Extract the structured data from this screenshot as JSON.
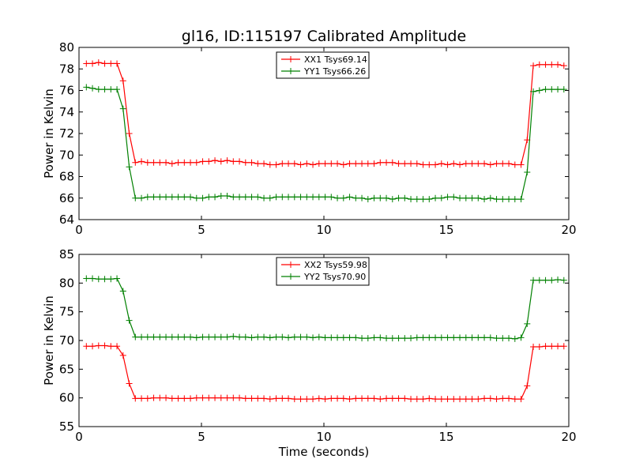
{
  "chart_data": [
    {
      "type": "line",
      "title": "gl16, ID:115197 Calibrated Amplitude",
      "xlabel": "",
      "ylabel": "Power in Kelvin",
      "xlim": [
        0,
        20
      ],
      "ylim": [
        64,
        80
      ],
      "xticks": [
        "0",
        "5",
        "10",
        "15",
        "20"
      ],
      "yticks": [
        "64",
        "66",
        "68",
        "70",
        "72",
        "74",
        "76",
        "78",
        "80"
      ],
      "grid": false,
      "legend_position": "top-center",
      "x": [
        0.3,
        0.55,
        0.8,
        1.05,
        1.3,
        1.55,
        1.8,
        2.05,
        2.3,
        2.55,
        2.8,
        3.05,
        3.3,
        3.55,
        3.8,
        4.05,
        4.3,
        4.55,
        4.8,
        5.05,
        5.3,
        5.55,
        5.8,
        6.05,
        6.3,
        6.55,
        6.8,
        7.05,
        7.3,
        7.55,
        7.8,
        8.05,
        8.3,
        8.55,
        8.8,
        9.05,
        9.3,
        9.55,
        9.8,
        10.05,
        10.3,
        10.55,
        10.8,
        11.05,
        11.3,
        11.55,
        11.8,
        12.05,
        12.3,
        12.55,
        12.8,
        13.05,
        13.3,
        13.55,
        13.8,
        14.05,
        14.3,
        14.55,
        14.8,
        15.05,
        15.3,
        15.55,
        15.8,
        16.05,
        16.3,
        16.55,
        16.8,
        17.05,
        17.3,
        17.55,
        17.8,
        18.05,
        18.3,
        18.55,
        18.8,
        19.05,
        19.3,
        19.55,
        19.8
      ],
      "series": [
        {
          "name": "XX1 Tsys69.14",
          "color": "#ff0000",
          "values": [
            78.5,
            78.5,
            78.6,
            78.5,
            78.5,
            78.5,
            76.9,
            72.0,
            69.3,
            69.4,
            69.3,
            69.3,
            69.3,
            69.3,
            69.2,
            69.3,
            69.3,
            69.3,
            69.3,
            69.4,
            69.4,
            69.5,
            69.4,
            69.5,
            69.4,
            69.4,
            69.3,
            69.3,
            69.2,
            69.2,
            69.1,
            69.1,
            69.2,
            69.2,
            69.2,
            69.1,
            69.2,
            69.1,
            69.2,
            69.2,
            69.2,
            69.2,
            69.1,
            69.2,
            69.2,
            69.2,
            69.2,
            69.2,
            69.3,
            69.3,
            69.3,
            69.2,
            69.2,
            69.2,
            69.2,
            69.1,
            69.1,
            69.1,
            69.2,
            69.1,
            69.2,
            69.1,
            69.2,
            69.2,
            69.2,
            69.2,
            69.1,
            69.2,
            69.2,
            69.2,
            69.1,
            69.1,
            71.4,
            78.3,
            78.4,
            78.4,
            78.4,
            78.4,
            78.3
          ]
        },
        {
          "name": "YY1 Tsys66.26",
          "color": "#008000",
          "values": [
            76.3,
            76.2,
            76.1,
            76.1,
            76.1,
            76.1,
            74.3,
            68.9,
            66.0,
            66.0,
            66.1,
            66.1,
            66.1,
            66.1,
            66.1,
            66.1,
            66.1,
            66.1,
            66.0,
            66.0,
            66.1,
            66.1,
            66.2,
            66.2,
            66.1,
            66.1,
            66.1,
            66.1,
            66.1,
            66.0,
            66.0,
            66.1,
            66.1,
            66.1,
            66.1,
            66.1,
            66.1,
            66.1,
            66.1,
            66.1,
            66.1,
            66.0,
            66.0,
            66.1,
            66.0,
            66.0,
            65.9,
            66.0,
            66.0,
            66.0,
            65.9,
            66.0,
            66.0,
            65.9,
            65.9,
            65.9,
            65.9,
            66.0,
            66.0,
            66.1,
            66.1,
            66.0,
            66.0,
            66.0,
            66.0,
            65.9,
            66.0,
            65.9,
            65.9,
            65.9,
            65.9,
            65.9,
            68.4,
            75.9,
            76.0,
            76.1,
            76.1,
            76.1,
            76.1
          ]
        }
      ]
    },
    {
      "type": "line",
      "title": "",
      "xlabel": "Time (seconds)",
      "ylabel": "Power in Kelvin",
      "xlim": [
        0,
        20
      ],
      "ylim": [
        55,
        85
      ],
      "xticks": [
        "0",
        "5",
        "10",
        "15",
        "20"
      ],
      "yticks": [
        "55",
        "60",
        "65",
        "70",
        "75",
        "80",
        "85"
      ],
      "grid": false,
      "legend_position": "top-center",
      "x": [
        0.3,
        0.55,
        0.8,
        1.05,
        1.3,
        1.55,
        1.8,
        2.05,
        2.3,
        2.55,
        2.8,
        3.05,
        3.3,
        3.55,
        3.8,
        4.05,
        4.3,
        4.55,
        4.8,
        5.05,
        5.3,
        5.55,
        5.8,
        6.05,
        6.3,
        6.55,
        6.8,
        7.05,
        7.3,
        7.55,
        7.8,
        8.05,
        8.3,
        8.55,
        8.8,
        9.05,
        9.3,
        9.55,
        9.8,
        10.05,
        10.3,
        10.55,
        10.8,
        11.05,
        11.3,
        11.55,
        11.8,
        12.05,
        12.3,
        12.55,
        12.8,
        13.05,
        13.3,
        13.55,
        13.8,
        14.05,
        14.3,
        14.55,
        14.8,
        15.05,
        15.3,
        15.55,
        15.8,
        16.05,
        16.3,
        16.55,
        16.8,
        17.05,
        17.3,
        17.55,
        17.8,
        18.05,
        18.3,
        18.55,
        18.8,
        19.05,
        19.3,
        19.55,
        19.8
      ],
      "series": [
        {
          "name": "XX2 Tsys59.98",
          "color": "#ff0000",
          "values": [
            69.0,
            69.0,
            69.1,
            69.1,
            69.0,
            69.0,
            67.4,
            62.5,
            59.9,
            59.9,
            59.9,
            60.0,
            60.0,
            60.0,
            59.9,
            59.9,
            59.9,
            59.9,
            60.0,
            60.0,
            60.0,
            60.0,
            60.0,
            60.0,
            60.0,
            60.0,
            59.9,
            59.9,
            59.9,
            59.9,
            59.8,
            59.9,
            59.9,
            59.9,
            59.8,
            59.8,
            59.8,
            59.8,
            59.9,
            59.8,
            59.9,
            59.9,
            59.9,
            59.8,
            59.9,
            59.9,
            59.9,
            59.9,
            59.8,
            59.9,
            59.9,
            59.9,
            59.9,
            59.8,
            59.8,
            59.8,
            59.9,
            59.8,
            59.8,
            59.8,
            59.8,
            59.8,
            59.8,
            59.8,
            59.8,
            59.9,
            59.9,
            59.8,
            59.9,
            59.9,
            59.8,
            59.8,
            62.1,
            68.9,
            68.9,
            69.0,
            69.0,
            69.0,
            69.0
          ]
        },
        {
          "name": "YY2 Tsys70.90",
          "color": "#008000",
          "values": [
            80.8,
            80.8,
            80.7,
            80.7,
            80.7,
            80.8,
            78.6,
            73.5,
            70.6,
            70.6,
            70.6,
            70.6,
            70.6,
            70.6,
            70.6,
            70.6,
            70.6,
            70.6,
            70.5,
            70.6,
            70.6,
            70.6,
            70.6,
            70.6,
            70.7,
            70.6,
            70.6,
            70.5,
            70.6,
            70.6,
            70.5,
            70.6,
            70.6,
            70.5,
            70.6,
            70.6,
            70.6,
            70.5,
            70.6,
            70.5,
            70.5,
            70.5,
            70.5,
            70.5,
            70.5,
            70.4,
            70.4,
            70.5,
            70.5,
            70.4,
            70.4,
            70.4,
            70.4,
            70.4,
            70.5,
            70.5,
            70.5,
            70.5,
            70.5,
            70.5,
            70.5,
            70.5,
            70.5,
            70.5,
            70.5,
            70.5,
            70.5,
            70.4,
            70.4,
            70.4,
            70.3,
            70.5,
            72.9,
            80.5,
            80.5,
            80.5,
            80.5,
            80.6,
            80.5
          ]
        }
      ]
    }
  ]
}
